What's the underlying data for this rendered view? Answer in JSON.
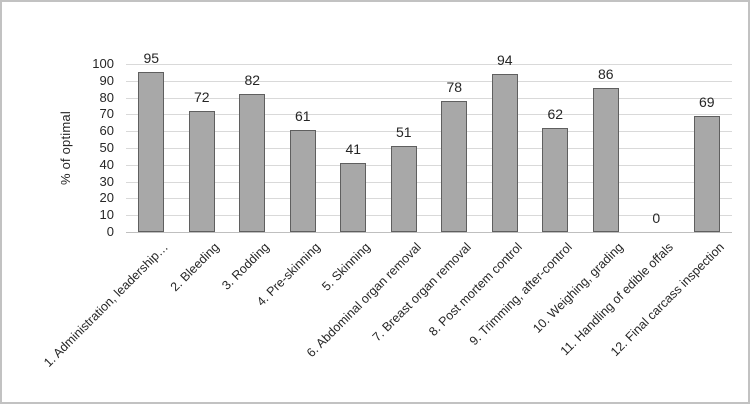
{
  "figure": {
    "background": "#ffffff",
    "border_color": "#c2c2c2"
  },
  "chart_data": {
    "type": "bar",
    "title": "",
    "xlabel": "",
    "ylabel": "% of optimal",
    "ylim": [
      0,
      100
    ],
    "yticks": [
      0,
      10,
      20,
      30,
      40,
      50,
      60,
      70,
      80,
      90,
      100
    ],
    "categories": [
      "1. Administration, leadership…",
      "2. Bleeding",
      "3. Rodding",
      "4. Pre-skinning",
      "5. Skinning",
      "6. Abdominal organ removal",
      "7. Breast organ removal",
      "8. Post mortem control",
      "9. Trimming, after-control",
      "10. Weighing, grading",
      "11. Handling of edible offals",
      "12. Final carcass inspection"
    ],
    "values": [
      95,
      72,
      82,
      61,
      41,
      51,
      78,
      94,
      62,
      86,
      0,
      69
    ],
    "data_labels": true,
    "legend": "none",
    "grid": "horizontal",
    "colors": {
      "bar_fill": "#a8a8a8",
      "bar_border": "#5f5f5f",
      "gridline": "#d9d9d9",
      "axis_line": "#bfbfbf",
      "text": "#262626"
    }
  }
}
